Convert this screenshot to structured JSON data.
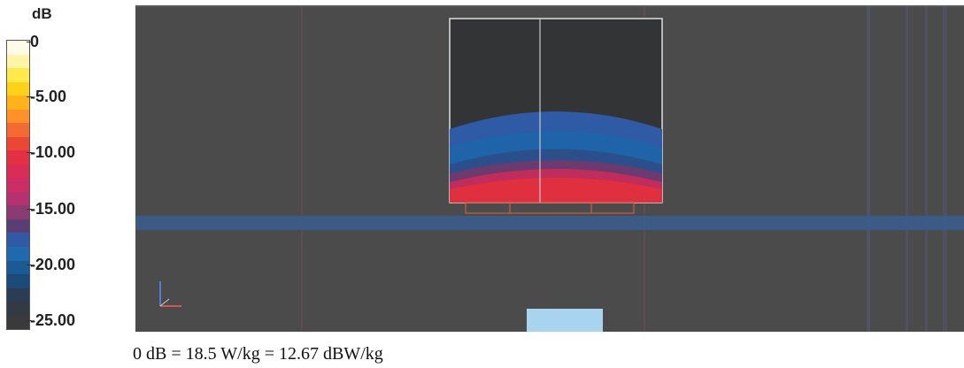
{
  "legend": {
    "unit": "dB",
    "ticks": [
      "0",
      "-5.00",
      "-10.00",
      "-15.00",
      "-20.00",
      "-25.00"
    ],
    "colors": [
      "#fffbe6",
      "#fff4a8",
      "#ffe94d",
      "#ffd21a",
      "#ffb31a",
      "#ff9128",
      "#f56a33",
      "#ec4735",
      "#e33043",
      "#d92d55",
      "#cc2d65",
      "#b53170",
      "#8c3a72",
      "#5a3d73",
      "#2e5aa6",
      "#2069ad",
      "#1c5a96",
      "#1c4b7a",
      "#2a3d55",
      "#333a44",
      "#3a3a3c"
    ]
  },
  "visualization": {
    "background_color": "#4b4b4c",
    "band_color": "#3a5d91",
    "inset_background": "#333436"
  },
  "footer": {
    "formula": "0 dB = 18.5 W/kg = 12.67 dBW/kg"
  }
}
